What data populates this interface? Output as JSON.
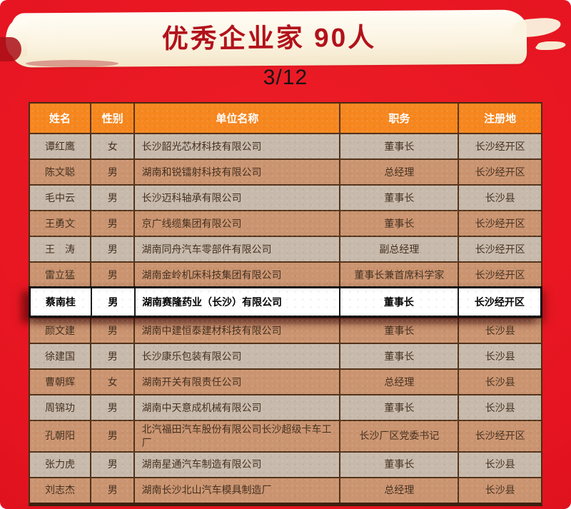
{
  "banner": {
    "title": "优秀企业家 90人"
  },
  "page_indicator": "3/12",
  "table": {
    "headers": [
      "姓名",
      "性别",
      "单位名称",
      "职务",
      "注册地"
    ],
    "rows": [
      {
        "name": "谭红鹰",
        "gender": "女",
        "company": "长沙韶光芯材科技有限公司",
        "position": "董事长",
        "location": "长沙经开区",
        "highlight": false
      },
      {
        "name": "陈文聪",
        "gender": "男",
        "company": "湖南和锐镭射科技有限公司",
        "position": "总经理",
        "location": "长沙经开区",
        "highlight": false
      },
      {
        "name": "毛中云",
        "gender": "男",
        "company": "长沙迈科轴承有限公司",
        "position": "董事长",
        "location": "长沙县",
        "highlight": false
      },
      {
        "name": "王勇文",
        "gender": "男",
        "company": "京广线缆集团有限公司",
        "position": "董事长",
        "location": "长沙经开区",
        "highlight": false
      },
      {
        "name": "王　涛",
        "gender": "男",
        "company": "湖南同舟汽车零部件有限公司",
        "position": "副总经理",
        "location": "长沙经开区",
        "highlight": false
      },
      {
        "name": "雷立猛",
        "gender": "男",
        "company": "湖南金岭机床科技集团有限公司",
        "position": "董事长兼首席科学家",
        "location": "长沙经开区",
        "highlight": false
      },
      {
        "name": "蔡南桂",
        "gender": "男",
        "company": "湖南赛隆药业（长沙）有限公司",
        "position": "董事长",
        "location": "长沙经开区",
        "highlight": true
      },
      {
        "name": "颜文建",
        "gender": "男",
        "company": "湖南中建恒泰建材科技有限公司",
        "position": "董事长",
        "location": "长沙县",
        "highlight": false
      },
      {
        "name": "徐建国",
        "gender": "男",
        "company": "长沙康乐包装有限公司",
        "position": "董事长",
        "location": "长沙县",
        "highlight": false
      },
      {
        "name": "曹朝辉",
        "gender": "女",
        "company": "湖南开关有限责任公司",
        "position": "总经理",
        "location": "长沙县",
        "highlight": false
      },
      {
        "name": "周锦功",
        "gender": "男",
        "company": "湖南中天意成机械有限公司",
        "position": "董事长",
        "location": "长沙县",
        "highlight": false
      },
      {
        "name": "孔朝阳",
        "gender": "男",
        "company": "北汽福田汽车股份有限公司长沙超级卡车工厂",
        "position": "长沙厂区党委书记",
        "location": "长沙经开区",
        "highlight": false
      },
      {
        "name": "张力虎",
        "gender": "男",
        "company": "湖南星通汽车制造有限公司",
        "position": "董事长",
        "location": "长沙县",
        "highlight": false
      },
      {
        "name": "刘志杰",
        "gender": "男",
        "company": "湖南长沙北山汽车模具制造厂",
        "position": "总经理",
        "location": "长沙县",
        "highlight": false
      }
    ]
  },
  "colors": {
    "background_red": "#e5131f",
    "banner_cream": "#fbf3e0",
    "banner_text_red": "#b2121b",
    "header_orange": "#f6861e",
    "row_light": "#c7baac",
    "row_orange": "#cb9470",
    "row_highlight": "#ffffff",
    "border_brown": "#53331a",
    "cell_text": "#44301f"
  }
}
